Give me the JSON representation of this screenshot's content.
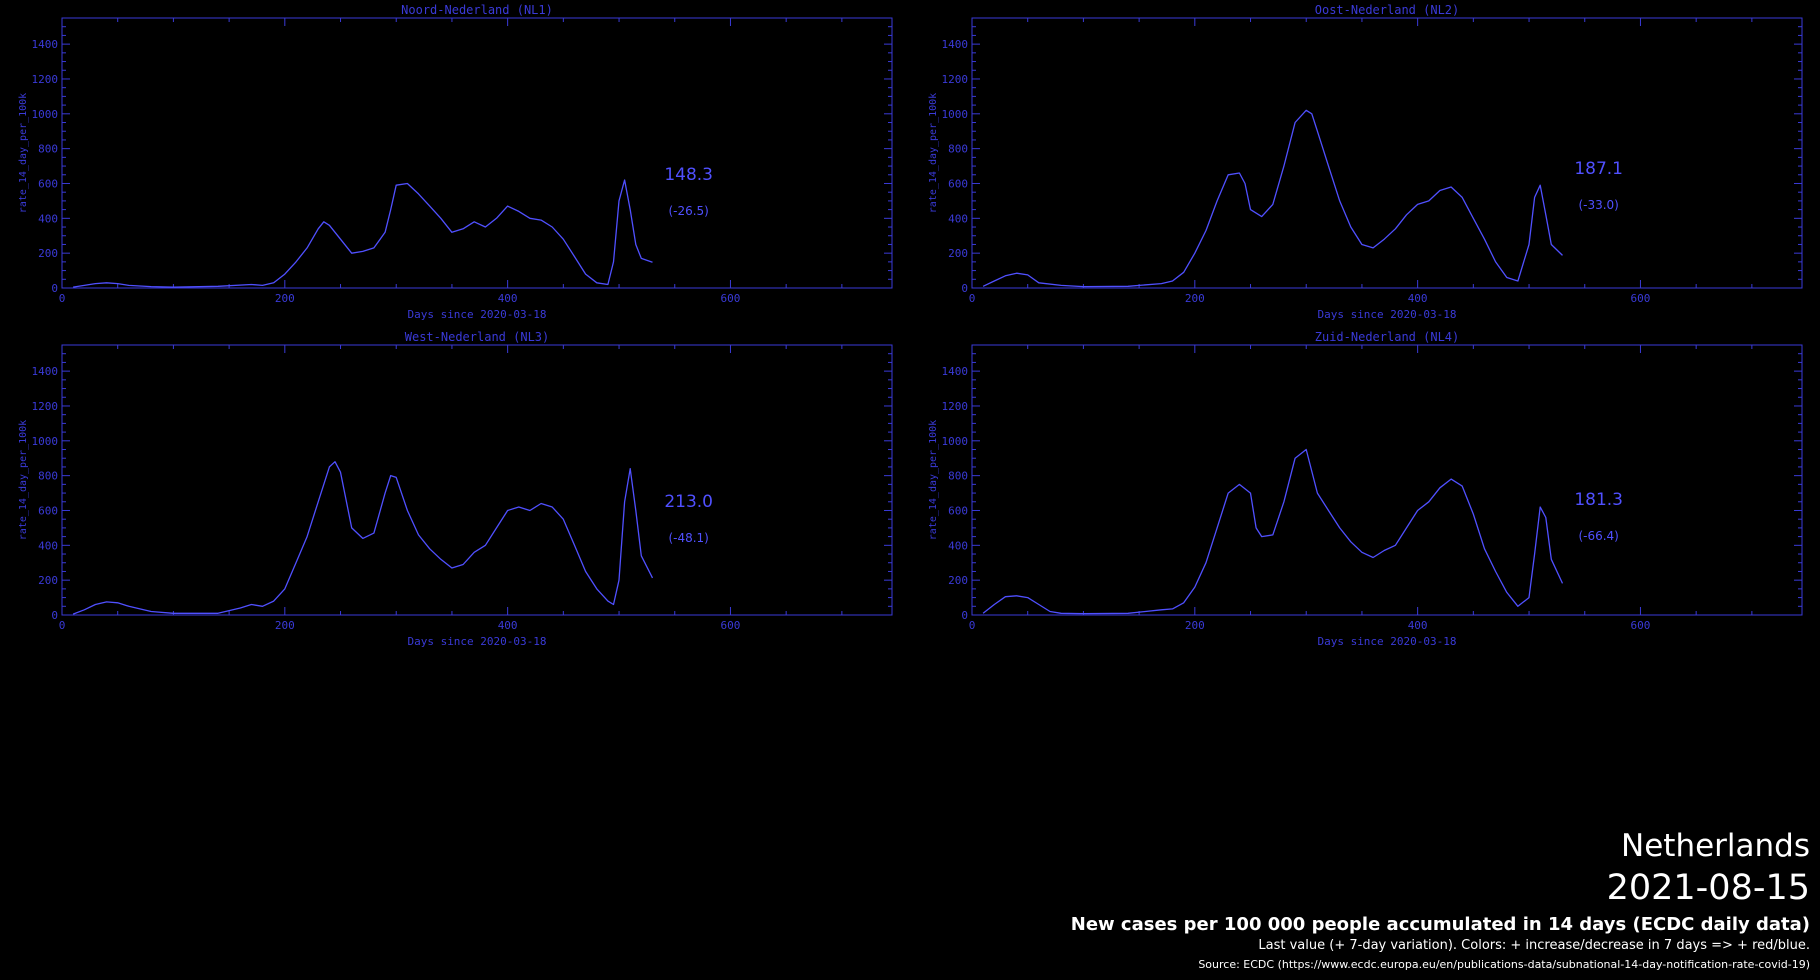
{
  "header": {
    "country": "Netherlands",
    "date": "2021-08-15",
    "subtitle": "New cases per 100 000 people accumulated in 14 days (ECDC daily data)",
    "note": "Last value (+ 7-day variation). Colors: + increase/decrease in 7 days => + red/blue.",
    "source": "Source: ECDC (https://www.ecdc.europa.eu/en/publications-data/subnational-14-day-notification-rate-covid-19)"
  },
  "colors": {
    "line": "#5050ff",
    "axis": "#3a3ad8",
    "background": "#000000"
  },
  "chart_data": [
    {
      "type": "line",
      "title": "Noord-Nederland (NL1)",
      "xlabel": "Days since 2020-03-18",
      "ylabel": "rate_14_day_per_100k",
      "xlim": [
        0,
        745
      ],
      "ylim": [
        0,
        1550
      ],
      "xticks": [
        0,
        200,
        400,
        600
      ],
      "yticks": [
        0,
        200,
        400,
        600,
        800,
        1000,
        1200,
        1400
      ],
      "last_value": "148.3",
      "variation": "(-26.5)",
      "x": [
        10,
        20,
        30,
        40,
        50,
        60,
        80,
        100,
        140,
        170,
        180,
        190,
        200,
        210,
        220,
        230,
        235,
        240,
        250,
        260,
        270,
        280,
        290,
        295,
        300,
        310,
        320,
        330,
        340,
        350,
        360,
        370,
        380,
        390,
        400,
        410,
        420,
        430,
        440,
        450,
        460,
        470,
        480,
        490,
        495,
        500,
        505,
        510,
        515,
        520,
        530
      ],
      "y": [
        5,
        15,
        25,
        30,
        25,
        15,
        8,
        5,
        10,
        20,
        15,
        30,
        80,
        150,
        230,
        340,
        380,
        360,
        280,
        200,
        210,
        230,
        320,
        450,
        590,
        600,
        540,
        470,
        400,
        320,
        340,
        380,
        350,
        400,
        470,
        440,
        400,
        390,
        350,
        280,
        180,
        80,
        30,
        20,
        150,
        500,
        620,
        450,
        250,
        170,
        148.3
      ]
    },
    {
      "type": "line",
      "title": "Oost-Nederland (NL2)",
      "xlabel": "Days since 2020-03-18",
      "ylabel": "rate_14_day_per_100k",
      "xlim": [
        0,
        745
      ],
      "ylim": [
        0,
        1550
      ],
      "xticks": [
        0,
        200,
        400,
        600
      ],
      "yticks": [
        0,
        200,
        400,
        600,
        800,
        1000,
        1200,
        1400
      ],
      "last_value": "187.1",
      "variation": "(-33.0)",
      "x": [
        10,
        20,
        30,
        40,
        50,
        60,
        80,
        100,
        140,
        170,
        180,
        190,
        200,
        210,
        220,
        230,
        240,
        245,
        250,
        260,
        270,
        280,
        290,
        300,
        305,
        310,
        320,
        330,
        340,
        350,
        360,
        370,
        380,
        390,
        400,
        410,
        420,
        430,
        440,
        450,
        460,
        470,
        480,
        490,
        500,
        505,
        510,
        515,
        520,
        530
      ],
      "y": [
        10,
        40,
        70,
        85,
        75,
        30,
        15,
        8,
        10,
        25,
        40,
        90,
        200,
        330,
        500,
        650,
        660,
        600,
        450,
        410,
        480,
        700,
        950,
        1020,
        1000,
        900,
        700,
        500,
        350,
        250,
        230,
        280,
        340,
        420,
        480,
        500,
        560,
        580,
        520,
        400,
        280,
        150,
        60,
        40,
        250,
        520,
        590,
        420,
        250,
        187.1
      ]
    },
    {
      "type": "line",
      "title": "West-Nederland (NL3)",
      "xlabel": "Days since 2020-03-18",
      "ylabel": "rate_14_day_per_100k",
      "xlim": [
        0,
        745
      ],
      "ylim": [
        0,
        1550
      ],
      "xticks": [
        0,
        200,
        400,
        600
      ],
      "yticks": [
        0,
        200,
        400,
        600,
        800,
        1000,
        1200,
        1400
      ],
      "last_value": "213.0",
      "variation": "(-48.1)",
      "x": [
        10,
        20,
        30,
        40,
        50,
        60,
        80,
        100,
        140,
        160,
        170,
        180,
        190,
        200,
        210,
        220,
        230,
        240,
        245,
        250,
        260,
        270,
        280,
        290,
        295,
        300,
        310,
        320,
        330,
        340,
        350,
        360,
        370,
        380,
        390,
        400,
        410,
        420,
        430,
        440,
        450,
        460,
        470,
        480,
        490,
        495,
        500,
        505,
        510,
        515,
        520,
        530
      ],
      "y": [
        5,
        30,
        60,
        75,
        70,
        50,
        20,
        10,
        10,
        40,
        60,
        50,
        80,
        150,
        300,
        450,
        650,
        850,
        880,
        820,
        500,
        440,
        470,
        700,
        800,
        790,
        600,
        460,
        380,
        320,
        270,
        290,
        360,
        400,
        500,
        600,
        620,
        600,
        640,
        620,
        550,
        400,
        250,
        150,
        80,
        60,
        200,
        650,
        840,
        600,
        340,
        213
      ]
    },
    {
      "type": "line",
      "title": "Zuid-Nederland (NL4)",
      "xlabel": "Days since 2020-03-18",
      "ylabel": "rate_14_day_per_100k",
      "xlim": [
        0,
        745
      ],
      "ylim": [
        0,
        1550
      ],
      "xticks": [
        0,
        200,
        400,
        600
      ],
      "yticks": [
        0,
        200,
        400,
        600,
        800,
        1000,
        1200,
        1400
      ],
      "last_value": "181.3",
      "variation": "(-66.4)",
      "x": [
        10,
        20,
        30,
        40,
        50,
        60,
        70,
        80,
        100,
        140,
        170,
        180,
        190,
        200,
        210,
        220,
        230,
        240,
        250,
        255,
        260,
        270,
        280,
        290,
        300,
        310,
        320,
        330,
        340,
        350,
        360,
        370,
        380,
        390,
        400,
        410,
        420,
        430,
        440,
        450,
        460,
        470,
        480,
        490,
        500,
        505,
        510,
        515,
        520,
        530
      ],
      "y": [
        10,
        60,
        105,
        110,
        100,
        60,
        20,
        10,
        8,
        10,
        30,
        35,
        70,
        160,
        300,
        500,
        700,
        750,
        700,
        500,
        450,
        460,
        650,
        900,
        950,
        700,
        600,
        500,
        420,
        360,
        330,
        370,
        400,
        500,
        600,
        650,
        730,
        780,
        740,
        580,
        380,
        250,
        130,
        50,
        100,
        350,
        620,
        560,
        320,
        181.3
      ]
    }
  ]
}
